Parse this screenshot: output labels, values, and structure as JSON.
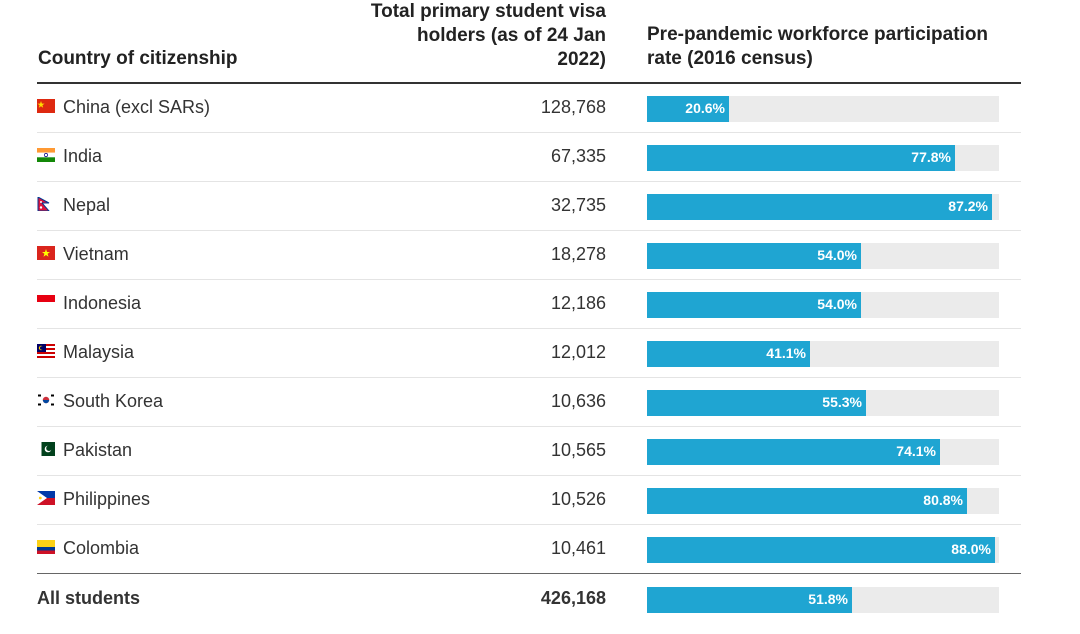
{
  "headers": {
    "country": "Country of citizenship",
    "visa_lines": [
      "Total primary student visa",
      "holders (as of 24 Jan",
      "2022)"
    ],
    "rate_lines": [
      "Pre-pandemic workforce participation",
      "rate (2016 census)"
    ]
  },
  "colors": {
    "bar": "#1fa5d2",
    "track": "#ebebeb"
  },
  "chart_data": {
    "type": "table",
    "columns": [
      "Country of citizenship",
      "Total primary student visa holders (as of 24 Jan 2022)",
      "Pre-pandemic workforce participation rate (2016 census)"
    ],
    "rows": [
      {
        "country": "China (excl SARs)",
        "flag": "china-flag-icon",
        "holders": "128,768",
        "rate": 20.6,
        "rate_label": "20.6%"
      },
      {
        "country": "India",
        "flag": "india-flag-icon",
        "holders": "67,335",
        "rate": 77.8,
        "rate_label": "77.8%"
      },
      {
        "country": "Nepal",
        "flag": "nepal-flag-icon",
        "holders": "32,735",
        "rate": 87.2,
        "rate_label": "87.2%"
      },
      {
        "country": "Vietnam",
        "flag": "vietnam-flag-icon",
        "holders": "18,278",
        "rate": 54.0,
        "rate_label": "54.0%"
      },
      {
        "country": "Indonesia",
        "flag": "indonesia-flag-icon",
        "holders": "12,186",
        "rate": 54.0,
        "rate_label": "54.0%"
      },
      {
        "country": "Malaysia",
        "flag": "malaysia-flag-icon",
        "holders": "12,012",
        "rate": 41.1,
        "rate_label": "41.1%"
      },
      {
        "country": "South Korea",
        "flag": "south-korea-flag-icon",
        "holders": "10,636",
        "rate": 55.3,
        "rate_label": "55.3%"
      },
      {
        "country": "Pakistan",
        "flag": "pakistan-flag-icon",
        "holders": "10,565",
        "rate": 74.1,
        "rate_label": "74.1%"
      },
      {
        "country": "Philippines",
        "flag": "philippines-flag-icon",
        "holders": "10,526",
        "rate": 80.8,
        "rate_label": "80.8%"
      },
      {
        "country": "Colombia",
        "flag": "colombia-flag-icon",
        "holders": "10,461",
        "rate": 88.0,
        "rate_label": "88.0%"
      }
    ],
    "total": {
      "country": "All students",
      "holders": "426,168",
      "rate": 51.8,
      "rate_label": "51.8%"
    },
    "rate_max": 88.0
  }
}
